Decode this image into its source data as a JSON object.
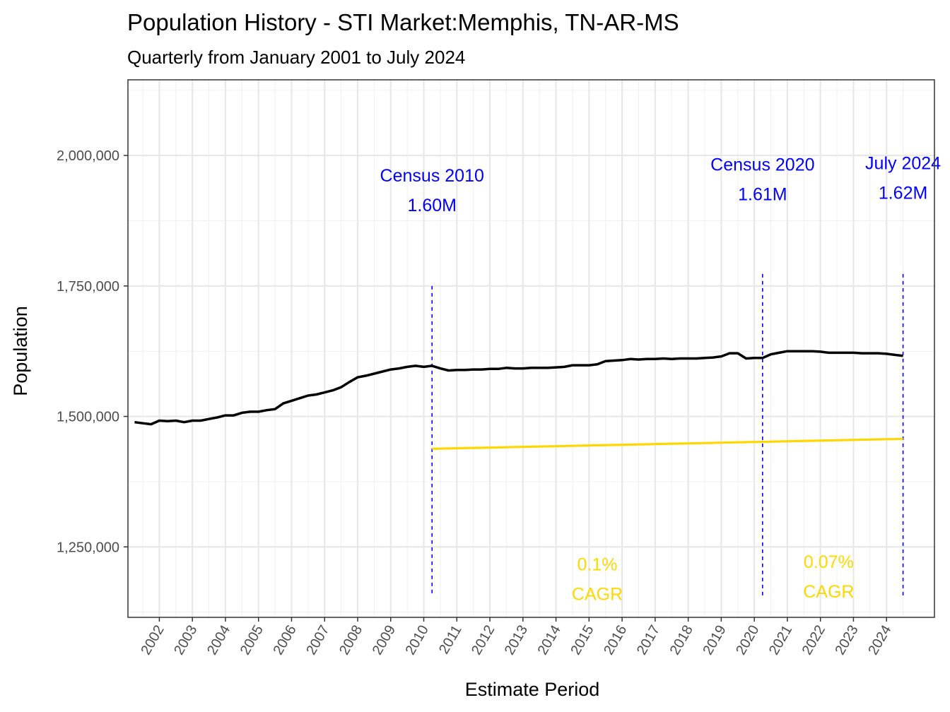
{
  "chart_data": {
    "type": "line",
    "title": "Population History - STI Market:Memphis, TN-AR-MS",
    "subtitle": "Quarterly from January 2001 to July 2024",
    "xlabel": "Estimate Period",
    "ylabel": "Population",
    "xlim": [
      2001.05,
      2025.45
    ],
    "ylim": [
      1115000,
      2145000
    ],
    "yticks": [
      1250000,
      1500000,
      1750000,
      2000000
    ],
    "ytick_labels": [
      "1,250,000",
      "1,500,000",
      "1,750,000",
      "2,000,000"
    ],
    "xticks": [
      2002,
      2003,
      2004,
      2005,
      2006,
      2007,
      2008,
      2009,
      2010,
      2011,
      2012,
      2013,
      2014,
      2015,
      2016,
      2017,
      2018,
      2019,
      2020,
      2021,
      2022,
      2023,
      2024
    ],
    "xtick_labels": [
      "2002",
      "2003",
      "2004",
      "2005",
      "2006",
      "2007",
      "2008",
      "2009",
      "2010",
      "2011",
      "2012",
      "2013",
      "2014",
      "2015",
      "2016",
      "2017",
      "2018",
      "2019",
      "2020",
      "2021",
      "2022",
      "2023",
      "2024"
    ],
    "grid": true,
    "series": [
      {
        "name": "Population",
        "color": "#000000",
        "x": [
          2001.25,
          2001.5,
          2001.75,
          2002.0,
          2002.25,
          2002.5,
          2002.75,
          2003.0,
          2003.25,
          2003.5,
          2003.75,
          2004.0,
          2004.25,
          2004.5,
          2004.75,
          2005.0,
          2005.25,
          2005.5,
          2005.75,
          2006.0,
          2006.25,
          2006.5,
          2006.75,
          2007.0,
          2007.25,
          2007.5,
          2007.75,
          2008.0,
          2008.25,
          2008.5,
          2008.75,
          2009.0,
          2009.25,
          2009.5,
          2009.75,
          2010.0,
          2010.25,
          2010.5,
          2010.75,
          2011.0,
          2011.25,
          2011.5,
          2011.75,
          2012.0,
          2012.25,
          2012.5,
          2012.75,
          2013.0,
          2013.25,
          2013.5,
          2013.75,
          2014.0,
          2014.25,
          2014.5,
          2014.75,
          2015.0,
          2015.25,
          2015.5,
          2015.75,
          2016.0,
          2016.25,
          2016.5,
          2016.75,
          2017.0,
          2017.25,
          2017.5,
          2017.75,
          2018.0,
          2018.25,
          2018.5,
          2018.75,
          2019.0,
          2019.25,
          2019.5,
          2019.75,
          2020.0,
          2020.25,
          2020.5,
          2020.75,
          2021.0,
          2021.25,
          2021.5,
          2021.75,
          2022.0,
          2022.25,
          2022.5,
          2022.75,
          2023.0,
          2023.25,
          2023.5,
          2023.75,
          2024.0,
          2024.25,
          2024.5
        ],
        "values": [
          1489000,
          1487000,
          1485000,
          1492000,
          1491000,
          1492000,
          1489000,
          1492000,
          1492000,
          1495000,
          1498000,
          1502000,
          1502000,
          1507000,
          1509000,
          1509000,
          1512000,
          1514000,
          1525000,
          1530000,
          1535000,
          1540000,
          1542000,
          1546000,
          1550000,
          1556000,
          1566000,
          1575000,
          1578000,
          1582000,
          1586000,
          1590000,
          1592000,
          1595000,
          1597000,
          1595000,
          1597000,
          1592000,
          1588000,
          1589000,
          1589000,
          1590000,
          1590000,
          1591000,
          1591000,
          1593000,
          1592000,
          1592000,
          1593000,
          1593000,
          1593000,
          1594000,
          1595000,
          1598000,
          1598000,
          1598000,
          1600000,
          1606000,
          1607000,
          1608000,
          1610000,
          1609000,
          1610000,
          1610000,
          1611000,
          1610000,
          1611000,
          1611000,
          1611000,
          1612000,
          1613000,
          1615000,
          1621000,
          1621000,
          1611000,
          1612000,
          1612000,
          1619000,
          1622000,
          1625000,
          1625000,
          1625000,
          1625000,
          1624000,
          1622000,
          1622000,
          1622000,
          1622000,
          1621000,
          1621000,
          1621000,
          1620000,
          1618000,
          1616000
        ]
      },
      {
        "name": "CAGR trend",
        "color": "#ffd700",
        "x": [
          2010.25,
          2024.5
        ],
        "values": [
          1438000,
          1457000
        ]
      }
    ],
    "reference_lines": [
      {
        "x": 2010.25,
        "y_top": 1750000,
        "color": "#0000ff"
      },
      {
        "x": 2020.25,
        "y_top": 1773000,
        "color": "#0000ff"
      },
      {
        "x": 2024.5,
        "y_top": 1773000,
        "color": "#0000ff"
      }
    ],
    "annotations": [
      {
        "lines": [
          "Census 2010",
          "1.60M"
        ],
        "x": 2010.25,
        "y": 1920000,
        "color": "#0000ff"
      },
      {
        "lines": [
          "Census 2020",
          "1.61M"
        ],
        "x": 2020.25,
        "y": 1941000,
        "color": "#0000ff"
      },
      {
        "lines": [
          "July 2024",
          "1.62M"
        ],
        "x": 2024.5,
        "y": 1944000,
        "color": "#0000ff"
      },
      {
        "lines": [
          "0.1%",
          "CAGR"
        ],
        "x": 2015.25,
        "y": 1175000,
        "color": "#ffd700"
      },
      {
        "lines": [
          "0.07%",
          "CAGR"
        ],
        "x": 2022.25,
        "y": 1180000,
        "color": "#ffd700"
      }
    ]
  }
}
